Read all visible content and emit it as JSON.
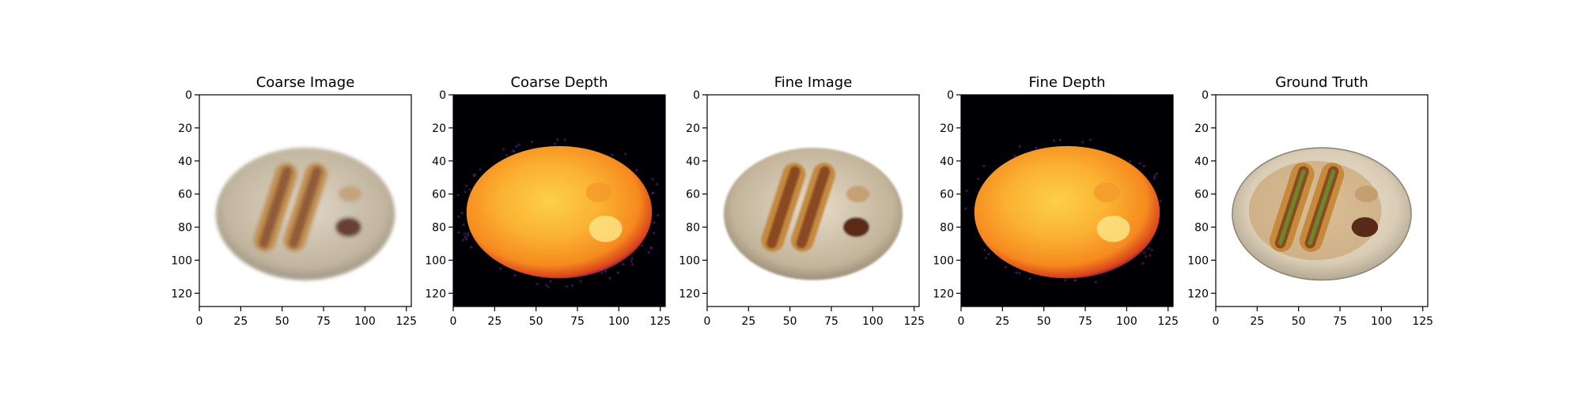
{
  "figure": {
    "panels": [
      {
        "id": "coarse-image",
        "title": "Coarse Image",
        "kind": "rgb",
        "variant": "blurry"
      },
      {
        "id": "coarse-depth",
        "title": "Coarse Depth",
        "kind": "depth",
        "variant": "noisy"
      },
      {
        "id": "fine-image",
        "title": "Fine Image",
        "kind": "rgb",
        "variant": "soft"
      },
      {
        "id": "fine-depth",
        "title": "Fine Depth",
        "kind": "depth",
        "variant": "clean"
      },
      {
        "id": "ground-truth",
        "title": "Ground Truth",
        "kind": "rgb",
        "variant": "sharp"
      }
    ],
    "x_ticks": [
      "0",
      "25",
      "50",
      "75",
      "100",
      "125"
    ],
    "y_ticks": [
      "0",
      "20",
      "40",
      "60",
      "80",
      "100",
      "120"
    ],
    "image_extent": [
      0,
      128
    ],
    "colors": {
      "depth_background": "#000004",
      "depth_colormap": "inferno",
      "plate": "#d8d2c4",
      "bun": "#c58a3c",
      "sausage": "#8a4a22",
      "sauce": "#5a2a18"
    }
  }
}
